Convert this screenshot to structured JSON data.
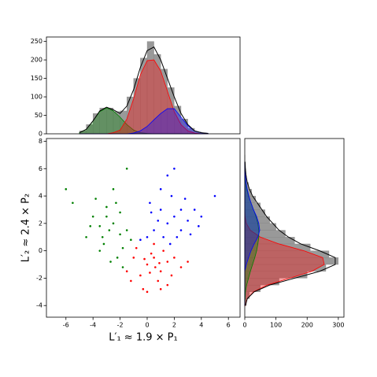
{
  "chart_data": [
    {
      "type": "histogram",
      "orientation": "vertical",
      "bins": [
        -5,
        -4.5,
        -4,
        -3.5,
        -3,
        -2.5,
        -2,
        -1.5,
        -1,
        -0.5,
        0,
        0.5,
        1,
        1.5,
        2,
        2.5,
        3,
        3.5,
        4,
        4.5
      ],
      "counts": [
        8,
        25,
        55,
        70,
        70,
        60,
        62,
        100,
        150,
        205,
        250,
        215,
        175,
        125,
        75,
        40,
        15,
        5,
        2
      ],
      "color": "#808080",
      "x": [
        -5,
        -4.5,
        -4,
        -3.5,
        -3,
        -2.5,
        -2,
        -1.5,
        -1,
        -0.5,
        0,
        0.5,
        1,
        1.5,
        2,
        2.5,
        3,
        3.5,
        4,
        4.5
      ],
      "series": [
        {
          "color": "#008000",
          "values": [
            3,
            12,
            35,
            60,
            70,
            62,
            45,
            25,
            10,
            3,
            1,
            0,
            0,
            0,
            0,
            0,
            0,
            0,
            0,
            0
          ]
        },
        {
          "color": "#ff0000",
          "values": [
            0,
            0,
            0,
            0,
            0,
            3,
            10,
            40,
            95,
            160,
            198,
            200,
            170,
            115,
            60,
            25,
            8,
            2,
            0,
            0
          ]
        },
        {
          "color": "#0000ff",
          "values": [
            0,
            0,
            0,
            0,
            0,
            0,
            0,
            0,
            2,
            8,
            20,
            38,
            55,
            68,
            68,
            45,
            22,
            8,
            3,
            1
          ]
        },
        {
          "color": "#000000",
          "values": [
            3,
            12,
            35,
            62,
            72,
            65,
            55,
            75,
            120,
            180,
            225,
            235,
            200,
            150,
            100,
            55,
            25,
            8,
            3,
            1
          ],
          "fill": false
        }
      ],
      "xlim": [
        -7.44,
        6.86
      ],
      "ylim": [
        0,
        262
      ],
      "yticks": [
        0,
        50,
        100,
        150,
        200,
        250
      ]
    },
    {
      "type": "scatter",
      "series": [
        {
          "color": "#008000",
          "x": [
            -4,
            -3.5,
            -3,
            -2.5,
            -2,
            -4.5,
            -3.2,
            -2.8,
            -1.8,
            -2.2,
            -3.8,
            -2.5,
            -1.5,
            -3,
            -4.2,
            -2,
            -1.2,
            -3.5,
            -2.7,
            -5.5,
            -6,
            -1.5,
            -2.3,
            -3.3,
            -1.8
          ],
          "values": [
            2.5,
            1.8,
            3.2,
            2,
            1.2,
            1,
            0.5,
            1.5,
            0.2,
            -0.5,
            3.8,
            4.5,
            1.5,
            2.5,
            1.8,
            2.8,
            0.8,
            0,
            -0.8,
            3.5,
            4.5,
            6,
            3.5,
            1,
            -1.2
          ]
        },
        {
          "color": "#ff0000",
          "x": [
            0,
            0.5,
            1,
            -0.5,
            0.3,
            1.5,
            -1,
            0.8,
            2,
            -0.3,
            0.6,
            1.2,
            -1.5,
            2.5,
            0,
            -0.8,
            0.2,
            1.8,
            -0.2,
            1,
            3,
            -1.2,
            0.5,
            1.5,
            0.9
          ],
          "values": [
            -1,
            -0.5,
            -1.5,
            -1.8,
            -0.2,
            -0.8,
            -0.5,
            -2.2,
            -0.5,
            -2.8,
            -1.2,
            0,
            -1.5,
            -1.2,
            -3,
            0.2,
            -1.6,
            -1.8,
            -0.6,
            -2.8,
            -0.8,
            -2.2,
            0.5,
            -2.5,
            -0.9
          ]
        },
        {
          "color": "#0000ff",
          "x": [
            1.5,
            2,
            0.5,
            1,
            2.5,
            3,
            0,
            1.8,
            2.2,
            0.8,
            3.5,
            1.2,
            2.8,
            0.3,
            1.5,
            2,
            4,
            3.2,
            -0.5,
            1,
            2.5,
            0.2,
            3.8,
            5,
            1.7
          ],
          "values": [
            2,
            2.5,
            1.5,
            3,
            1.5,
            2.2,
            1,
            4,
            1,
            2.2,
            3,
            1,
            3.8,
            2.8,
            5.5,
            6,
            2.5,
            1.2,
            0.8,
            4.5,
            3,
            3.5,
            1.8,
            4,
            0.5
          ]
        }
      ],
      "x_label": "L′₁ ≈ 1.9 × P₁",
      "y_label": "L′₂ ≈ 2.4 × P₂",
      "xlim": [
        -7.44,
        6.86
      ],
      "ylim": [
        -4.85,
        8.2
      ],
      "xticks": [
        -6,
        -4,
        -2,
        0,
        2,
        4,
        6
      ],
      "yticks": [
        -4,
        -2,
        0,
        2,
        4,
        6,
        8
      ]
    },
    {
      "type": "histogram",
      "orientation": "horizontal",
      "bins": [
        -4,
        -3.5,
        -3,
        -2.5,
        -2,
        -1.5,
        -1,
        -0.5,
        0,
        0.5,
        1,
        1.5,
        2,
        2.5,
        3,
        3.5,
        4,
        4.5,
        5,
        5.5,
        6,
        6.5,
        7
      ],
      "counts": [
        5,
        15,
        50,
        110,
        200,
        260,
        300,
        270,
        210,
        160,
        130,
        100,
        80,
        65,
        50,
        35,
        22,
        12,
        6,
        3,
        2,
        1
      ],
      "color": "#808080",
      "x": [
        -4,
        -3.5,
        -3,
        -2.5,
        -2,
        -1.5,
        -1,
        -0.5,
        0,
        0.5,
        1,
        1.5,
        2,
        2.5,
        3,
        3.5,
        4,
        4.5,
        5,
        5.5,
        6,
        6.5
      ],
      "series": [
        {
          "color": "#ff0000",
          "values": [
            2,
            8,
            28,
            72,
            145,
            215,
            255,
            250,
            190,
            110,
            50,
            18,
            5,
            1,
            0,
            0,
            0,
            0,
            0,
            0,
            0,
            0
          ]
        },
        {
          "color": "#008000",
          "values": [
            0,
            1,
            2,
            6,
            12,
            18,
            25,
            32,
            38,
            42,
            45,
            45,
            42,
            36,
            28,
            20,
            12,
            6,
            3,
            1,
            0,
            0
          ]
        },
        {
          "color": "#0000ff",
          "values": [
            0,
            0,
            0,
            0,
            0,
            0,
            5,
            12,
            20,
            30,
            42,
            48,
            45,
            38,
            28,
            20,
            13,
            8,
            4,
            2,
            1,
            0
          ]
        },
        {
          "color": "#000000",
          "values": [
            2,
            8,
            30,
            80,
            160,
            240,
            290,
            290,
            240,
            180,
            140,
            110,
            90,
            70,
            55,
            40,
            25,
            15,
            8,
            4,
            2,
            1
          ],
          "fill": false
        }
      ],
      "ylim": [
        -4.85,
        8.2
      ],
      "xlim": [
        0,
        318
      ],
      "xticks": [
        0,
        100,
        200,
        300
      ]
    }
  ]
}
